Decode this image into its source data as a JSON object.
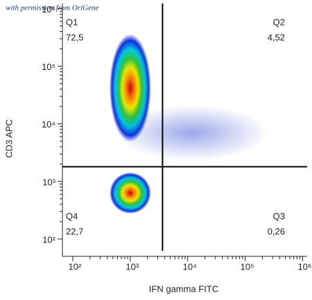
{
  "watermark": "with permission from OriGene",
  "chart_data": {
    "type": "scatter",
    "x_label": "IFN gamma FITC",
    "y_label": "CD3 APC",
    "xscale": "log",
    "yscale": "log",
    "xlim": [
      66,
      1200000
    ],
    "ylim": [
      50,
      1230000
    ],
    "xticks": [
      {
        "value": 100,
        "label": "10²"
      },
      {
        "value": 1000,
        "label": "10³"
      },
      {
        "value": 10000,
        "label": "10⁴"
      },
      {
        "value": 100000,
        "label": "10⁵"
      },
      {
        "value": 1000000,
        "label": "10⁶"
      }
    ],
    "yticks": [
      {
        "value": 100,
        "label": "10²"
      },
      {
        "value": 1000,
        "label": "10³"
      },
      {
        "value": 10000,
        "label": "10⁴"
      },
      {
        "value": 100000,
        "label": "10⁵"
      },
      {
        "value": 1000000,
        "label": "10⁶"
      }
    ],
    "gates": {
      "x": 3650,
      "y": 1800
    },
    "quadrants": {
      "names": [
        "Q1",
        "Q2",
        "Q3",
        "Q4"
      ],
      "values": [
        72.5,
        4.52,
        0.26,
        22.7
      ],
      "value_labels": [
        "72,5",
        "4,52",
        "0,26",
        "22,7"
      ]
    },
    "populations": {
      "x": [
        1000,
        1000,
        12000
      ],
      "y": [
        42000,
        630,
        7000
      ]
    }
  }
}
